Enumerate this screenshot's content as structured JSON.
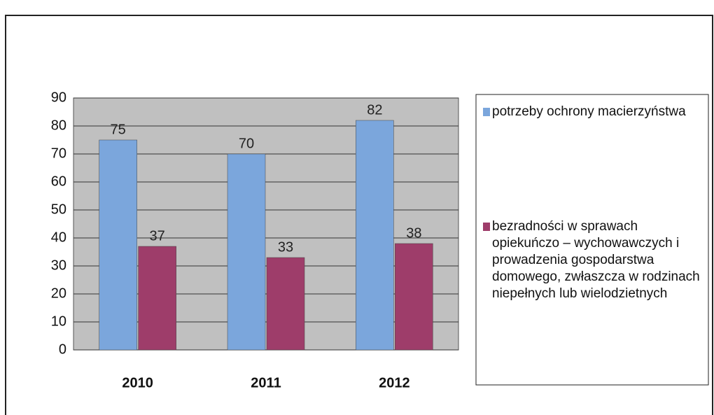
{
  "chart_data": {
    "type": "bar",
    "categories": [
      "2010",
      "2011",
      "2012"
    ],
    "series": [
      {
        "name": "potrzeby ochrony macierzyństwa",
        "color": "#7ba6dc",
        "values": [
          75,
          70,
          82
        ]
      },
      {
        "name": "bezradności w sprawach opiekuńczo – wychowawczych i prowadzenia gospodarstwa domowego, zwłaszcza w rodzinach niepełnych lub wielodzietnych",
        "color": "#9e3d6a",
        "values": [
          37,
          33,
          38
        ]
      }
    ],
    "ylim": [
      0,
      90
    ],
    "yticks": [
      0,
      10,
      20,
      30,
      40,
      50,
      60,
      70,
      80,
      90
    ],
    "grid": true,
    "legend": "right"
  }
}
